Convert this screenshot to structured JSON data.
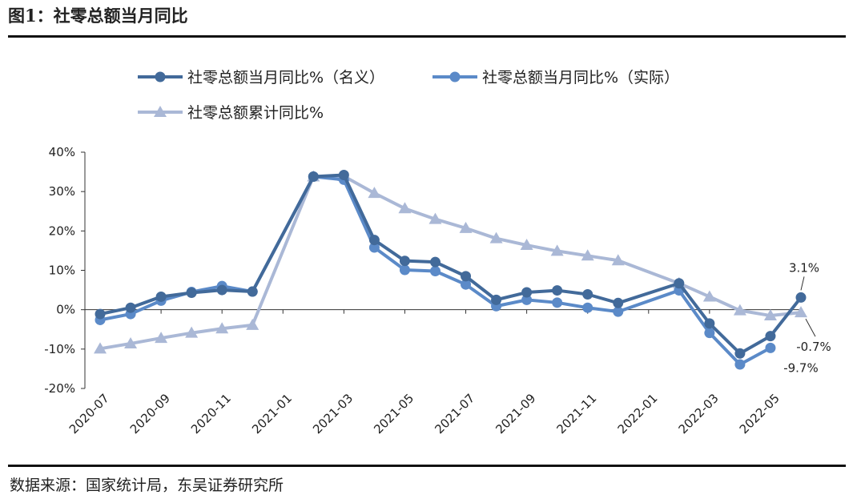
{
  "header": {
    "title": "图1：社零总额当月同比"
  },
  "footer": {
    "source": "数据来源：国家统计局，东吴证券研究所"
  },
  "colors": {
    "nominal": "#426a9a",
    "real": "#5b8ac8",
    "cumulative": "#aab8d6"
  },
  "chart_data": {
    "type": "line",
    "x": [
      "2020-07",
      "2020-08",
      "2020-09",
      "2020-10",
      "2020-11",
      "2020-12",
      "2021-01",
      "2021-02",
      "2021-03",
      "2021-04",
      "2021-05",
      "2021-06",
      "2021-07",
      "2021-08",
      "2021-09",
      "2021-10",
      "2021-11",
      "2021-12",
      "2022-01",
      "2022-02",
      "2022-03",
      "2022-04",
      "2022-05",
      "2022-06"
    ],
    "tick_labels": [
      "2020-07",
      "2020-09",
      "2020-11",
      "2021-01",
      "2021-03",
      "2021-05",
      "2021-07",
      "2021-09",
      "2021-11",
      "2022-01",
      "2022-03",
      "2022-05"
    ],
    "ylim": [
      -20,
      40
    ],
    "yticks": [
      "-20%",
      "-10%",
      "0%",
      "10%",
      "20%",
      "30%",
      "40%"
    ],
    "y_tick_values": [
      -20,
      -10,
      0,
      10,
      20,
      30,
      40
    ],
    "series": [
      {
        "name": "社零总额当月同比%（名义）",
        "marker": "circle",
        "values": [
          -1.1,
          0.5,
          3.3,
          4.3,
          5.0,
          4.6,
          null,
          33.8,
          34.2,
          17.7,
          12.4,
          12.1,
          8.5,
          2.5,
          4.4,
          4.9,
          3.9,
          1.7,
          null,
          6.7,
          -3.5,
          -11.1,
          -6.7,
          3.1
        ]
      },
      {
        "name": "社零总额当月同比%（实际）",
        "marker": "circle",
        "values": [
          -2.6,
          -1.1,
          2.3,
          4.5,
          6.0,
          4.6,
          null,
          33.8,
          33.0,
          15.8,
          10.1,
          9.8,
          6.4,
          0.9,
          2.5,
          1.8,
          0.5,
          -0.5,
          null,
          4.9,
          -5.9,
          -13.9,
          -9.7,
          null
        ]
      },
      {
        "name": "社零总额累计同比%",
        "marker": "triangle",
        "values": [
          -9.9,
          -8.6,
          -7.2,
          -5.9,
          -4.8,
          -3.9,
          null,
          33.8,
          33.9,
          29.6,
          25.7,
          23.0,
          20.7,
          18.1,
          16.4,
          14.9,
          13.7,
          12.5,
          null,
          6.7,
          3.3,
          -0.2,
          -1.5,
          -0.7
        ]
      }
    ],
    "annotations": [
      {
        "text": "3.1%",
        "series": 0,
        "index": 23
      },
      {
        "text": "-0.7%",
        "series": 2,
        "index": 23
      },
      {
        "text": "-9.7%",
        "series": 1,
        "index": 22
      }
    ],
    "legend_position": "top",
    "grid": false
  }
}
